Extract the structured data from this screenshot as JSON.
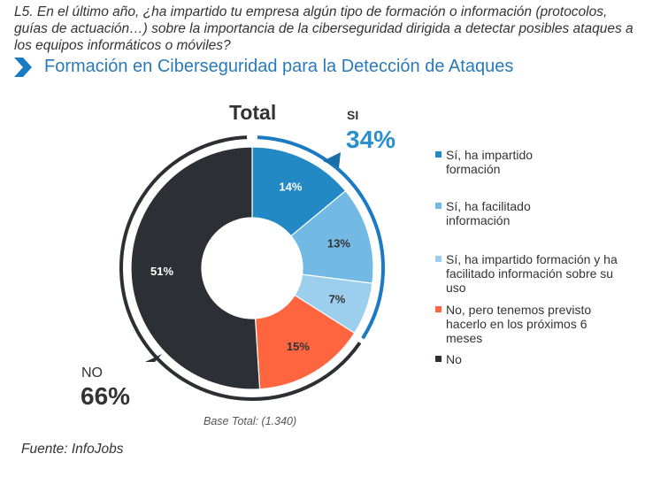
{
  "question": "L5. En el último año, ¿ha impartido tu empresa algún tipo de formación o información (protocolos, guías de actuación…) sobre la importancia de la ciberseguridad dirigida a detectar posibles ataques a los equipos informáticos o móviles?",
  "section_title": "Formación en Ciberseguridad para la Detección de Ataques",
  "footer": "Fuente: InfoJobs",
  "chart_data": {
    "type": "pie",
    "title": "Total",
    "base": "Base Total: (1.340)",
    "categories": [
      "Sí, ha impartido formación",
      "Sí, ha facilitado información",
      "Sí, ha impartido formación y ha facilitado información sobre su uso",
      "No, pero tenemos previsto hacerlo en los próximos 6 meses",
      "No"
    ],
    "values": [
      14,
      13,
      7,
      15,
      51
    ],
    "labels": [
      "14%",
      "13%",
      "7%",
      "15%",
      "51%"
    ],
    "colors": [
      "#2289c4",
      "#72b9e4",
      "#9ccfee",
      "#ff6640",
      "#2c2f33"
    ],
    "label_colors": [
      "#ffffff",
      "#333333",
      "#333333",
      "#333333",
      "#ffffff"
    ],
    "groups": [
      {
        "name": "SI",
        "value": "34%",
        "color": "#1a7ac4"
      },
      {
        "name": "NO",
        "value": "66%",
        "color": "#2c2f33"
      }
    ],
    "legend_position": "right"
  }
}
